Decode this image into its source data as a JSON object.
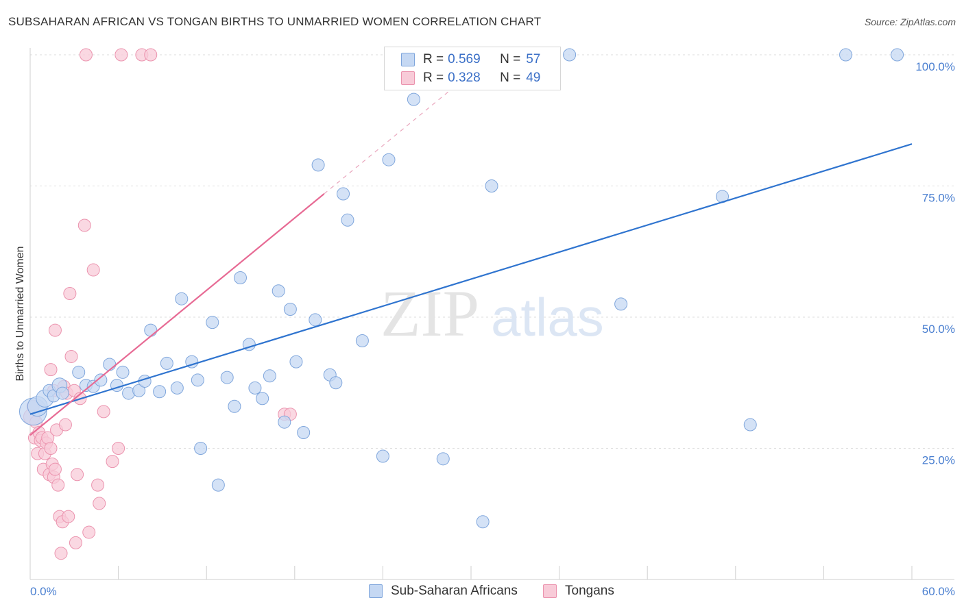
{
  "title": "SUBSAHARAN AFRICAN VS TONGAN BIRTHS TO UNMARRIED WOMEN CORRELATION CHART",
  "source": "Source: ZipAtlas.com",
  "watermark": {
    "zip": "ZIP",
    "atlas": "atlas"
  },
  "colors": {
    "blue_fill": "#c5d8f3",
    "blue_stroke": "#7fa6dc",
    "blue_line": "#2f74cf",
    "pink_fill": "#f8cbd8",
    "pink_stroke": "#eb93ae",
    "pink_line": "#e76a94",
    "tick_text": "#4a7fd0"
  },
  "legend": {
    "rows": [
      {
        "r_label": "R =",
        "r_value": "0.569",
        "n_label": "N =",
        "n_value": "57"
      },
      {
        "r_label": "R =",
        "r_value": "0.328",
        "n_label": "N =",
        "n_value": "49"
      }
    ]
  },
  "bottom_legend": {
    "series1": "Sub-Saharan Africans",
    "series2": "Tongans"
  },
  "chart_data": {
    "type": "scatter",
    "title": "SUBSAHARAN AFRICAN VS TONGAN BIRTHS TO UNMARRIED WOMEN CORRELATION CHART",
    "xlabel": "",
    "ylabel": "Births to Unmarried Women",
    "xlim": [
      0,
      60
    ],
    "ylim": [
      0,
      100
    ],
    "x_tick_labels": {
      "left": "0.0%",
      "right": "60.0%"
    },
    "y_ticks": [
      {
        "value": 100,
        "label": "100.0%"
      },
      {
        "value": 75,
        "label": "75.0%"
      },
      {
        "value": 50,
        "label": "50.0%"
      },
      {
        "value": 25,
        "label": "25.0%"
      }
    ],
    "series": [
      {
        "name": "Sub-Saharan Africans",
        "R": 0.569,
        "N": 57,
        "trend": {
          "x1": 0.0,
          "y1": 31.5,
          "x2": 60.0,
          "y2": 83.0,
          "dashed_extension": false
        },
        "points": [
          {
            "x": 0.2,
            "y": 32.0,
            "s": 2.2
          },
          {
            "x": 0.5,
            "y": 33.0,
            "s": 1.6
          },
          {
            "x": 1.0,
            "y": 34.5,
            "s": 1.4
          },
          {
            "x": 1.3,
            "y": 36.0,
            "s": 1.0
          },
          {
            "x": 1.6,
            "y": 35.0,
            "s": 1.0
          },
          {
            "x": 2.0,
            "y": 37.0,
            "s": 1.2
          },
          {
            "x": 2.2,
            "y": 35.5,
            "s": 1.0
          },
          {
            "x": 3.3,
            "y": 39.5,
            "s": 1.0
          },
          {
            "x": 3.8,
            "y": 37.0,
            "s": 1.0
          },
          {
            "x": 4.3,
            "y": 36.8,
            "s": 1.0
          },
          {
            "x": 4.8,
            "y": 38.0,
            "s": 1.0
          },
          {
            "x": 5.4,
            "y": 41.0,
            "s": 1.0
          },
          {
            "x": 5.9,
            "y": 37.0,
            "s": 1.0
          },
          {
            "x": 6.3,
            "y": 39.5,
            "s": 1.0
          },
          {
            "x": 6.7,
            "y": 35.5,
            "s": 1.0
          },
          {
            "x": 7.4,
            "y": 36.0,
            "s": 1.0
          },
          {
            "x": 7.8,
            "y": 37.8,
            "s": 1.0
          },
          {
            "x": 8.2,
            "y": 47.5,
            "s": 1.0
          },
          {
            "x": 8.8,
            "y": 35.8,
            "s": 1.0
          },
          {
            "x": 9.3,
            "y": 41.2,
            "s": 1.0
          },
          {
            "x": 10.0,
            "y": 36.5,
            "s": 1.0
          },
          {
            "x": 10.3,
            "y": 53.5,
            "s": 1.0
          },
          {
            "x": 11.0,
            "y": 41.5,
            "s": 1.0
          },
          {
            "x": 11.4,
            "y": 38.0,
            "s": 1.0
          },
          {
            "x": 11.6,
            "y": 25.0,
            "s": 1.0
          },
          {
            "x": 12.4,
            "y": 49.0,
            "s": 1.0
          },
          {
            "x": 12.8,
            "y": 18.0,
            "s": 1.0
          },
          {
            "x": 13.4,
            "y": 38.5,
            "s": 1.0
          },
          {
            "x": 13.9,
            "y": 33.0,
            "s": 1.0
          },
          {
            "x": 14.3,
            "y": 57.5,
            "s": 1.0
          },
          {
            "x": 14.9,
            "y": 44.8,
            "s": 1.0
          },
          {
            "x": 15.3,
            "y": 36.5,
            "s": 1.0
          },
          {
            "x": 15.8,
            "y": 34.5,
            "s": 1.0
          },
          {
            "x": 16.3,
            "y": 38.8,
            "s": 1.0
          },
          {
            "x": 16.9,
            "y": 55.0,
            "s": 1.0
          },
          {
            "x": 17.3,
            "y": 30.0,
            "s": 1.0
          },
          {
            "x": 17.7,
            "y": 51.5,
            "s": 1.0
          },
          {
            "x": 18.1,
            "y": 41.5,
            "s": 1.0
          },
          {
            "x": 18.6,
            "y": 28.0,
            "s": 1.0
          },
          {
            "x": 19.4,
            "y": 49.5,
            "s": 1.0
          },
          {
            "x": 19.6,
            "y": 79.0,
            "s": 1.0
          },
          {
            "x": 20.4,
            "y": 39.0,
            "s": 1.0
          },
          {
            "x": 20.8,
            "y": 37.5,
            "s": 1.0
          },
          {
            "x": 21.3,
            "y": 73.5,
            "s": 1.0
          },
          {
            "x": 21.6,
            "y": 68.5,
            "s": 1.0
          },
          {
            "x": 22.6,
            "y": 45.5,
            "s": 1.0
          },
          {
            "x": 24.0,
            "y": 23.5,
            "s": 1.0
          },
          {
            "x": 24.4,
            "y": 80.0,
            "s": 1.0
          },
          {
            "x": 26.1,
            "y": 91.5,
            "s": 1.0
          },
          {
            "x": 28.1,
            "y": 23.0,
            "s": 1.0
          },
          {
            "x": 30.8,
            "y": 11.0,
            "s": 1.0
          },
          {
            "x": 31.4,
            "y": 75.0,
            "s": 1.0
          },
          {
            "x": 36.7,
            "y": 100.0,
            "s": 1.0
          },
          {
            "x": 40.2,
            "y": 52.5,
            "s": 1.0
          },
          {
            "x": 47.1,
            "y": 73.0,
            "s": 1.0
          },
          {
            "x": 49.0,
            "y": 29.5,
            "s": 1.0
          },
          {
            "x": 55.5,
            "y": 100.0,
            "s": 1.0
          },
          {
            "x": 59.0,
            "y": 100.0,
            "s": 1.0
          }
        ]
      },
      {
        "name": "Tongans",
        "R": 0.328,
        "N": 49,
        "trend": {
          "x1": 0.0,
          "y1": 27.5,
          "x2": 20.0,
          "y2": 73.5,
          "dashed_to": {
            "x": 30.0,
            "y": 96.5
          }
        },
        "points": [
          {
            "x": 0.1,
            "y": 31.0,
            "s": 1.3
          },
          {
            "x": 0.2,
            "y": 33.0,
            "s": 1.0
          },
          {
            "x": 0.3,
            "y": 27.0,
            "s": 1.0
          },
          {
            "x": 0.4,
            "y": 30.0,
            "s": 1.0
          },
          {
            "x": 0.5,
            "y": 24.0,
            "s": 1.0
          },
          {
            "x": 0.6,
            "y": 28.0,
            "s": 1.0
          },
          {
            "x": 0.7,
            "y": 26.5,
            "s": 1.0
          },
          {
            "x": 0.8,
            "y": 27.0,
            "s": 1.0
          },
          {
            "x": 0.9,
            "y": 21.0,
            "s": 1.0
          },
          {
            "x": 1.0,
            "y": 24.0,
            "s": 1.0
          },
          {
            "x": 1.1,
            "y": 26.0,
            "s": 1.0
          },
          {
            "x": 1.2,
            "y": 27.0,
            "s": 1.0
          },
          {
            "x": 1.3,
            "y": 20.0,
            "s": 1.0
          },
          {
            "x": 1.4,
            "y": 25.0,
            "s": 1.0
          },
          {
            "x": 1.5,
            "y": 22.0,
            "s": 1.0
          },
          {
            "x": 1.6,
            "y": 19.5,
            "s": 1.0
          },
          {
            "x": 1.7,
            "y": 21.0,
            "s": 1.0
          },
          {
            "x": 1.4,
            "y": 40.0,
            "s": 1.0
          },
          {
            "x": 1.7,
            "y": 47.5,
            "s": 1.0
          },
          {
            "x": 1.6,
            "y": 36.0,
            "s": 1.0
          },
          {
            "x": 1.8,
            "y": 28.5,
            "s": 1.0
          },
          {
            "x": 1.9,
            "y": 18.0,
            "s": 1.0
          },
          {
            "x": 2.0,
            "y": 12.0,
            "s": 1.0
          },
          {
            "x": 2.1,
            "y": 5.0,
            "s": 1.0
          },
          {
            "x": 2.2,
            "y": 11.0,
            "s": 1.0
          },
          {
            "x": 2.3,
            "y": 36.8,
            "s": 1.0
          },
          {
            "x": 2.4,
            "y": 29.5,
            "s": 1.0
          },
          {
            "x": 2.5,
            "y": 35.5,
            "s": 1.0
          },
          {
            "x": 2.6,
            "y": 12.0,
            "s": 1.0
          },
          {
            "x": 2.7,
            "y": 54.5,
            "s": 1.0
          },
          {
            "x": 2.8,
            "y": 42.5,
            "s": 1.0
          },
          {
            "x": 3.0,
            "y": 36.0,
            "s": 1.0
          },
          {
            "x": 3.1,
            "y": 7.0,
            "s": 1.0
          },
          {
            "x": 3.2,
            "y": 20.0,
            "s": 1.0
          },
          {
            "x": 3.4,
            "y": 34.5,
            "s": 1.0
          },
          {
            "x": 3.7,
            "y": 67.5,
            "s": 1.0
          },
          {
            "x": 3.8,
            "y": 100.0,
            "s": 1.0
          },
          {
            "x": 4.0,
            "y": 9.0,
            "s": 1.0
          },
          {
            "x": 4.3,
            "y": 59.0,
            "s": 1.0
          },
          {
            "x": 4.6,
            "y": 18.0,
            "s": 1.0
          },
          {
            "x": 4.7,
            "y": 14.5,
            "s": 1.0
          },
          {
            "x": 5.0,
            "y": 32.0,
            "s": 1.0
          },
          {
            "x": 5.6,
            "y": 22.5,
            "s": 1.0
          },
          {
            "x": 6.0,
            "y": 25.0,
            "s": 1.0
          },
          {
            "x": 6.2,
            "y": 100.0,
            "s": 1.0
          },
          {
            "x": 7.6,
            "y": 100.0,
            "s": 1.0
          },
          {
            "x": 8.2,
            "y": 100.0,
            "s": 1.0
          },
          {
            "x": 17.3,
            "y": 31.5,
            "s": 1.0
          },
          {
            "x": 17.7,
            "y": 31.5,
            "s": 1.0
          }
        ]
      }
    ],
    "grid": true,
    "legend_position": "top-center"
  }
}
